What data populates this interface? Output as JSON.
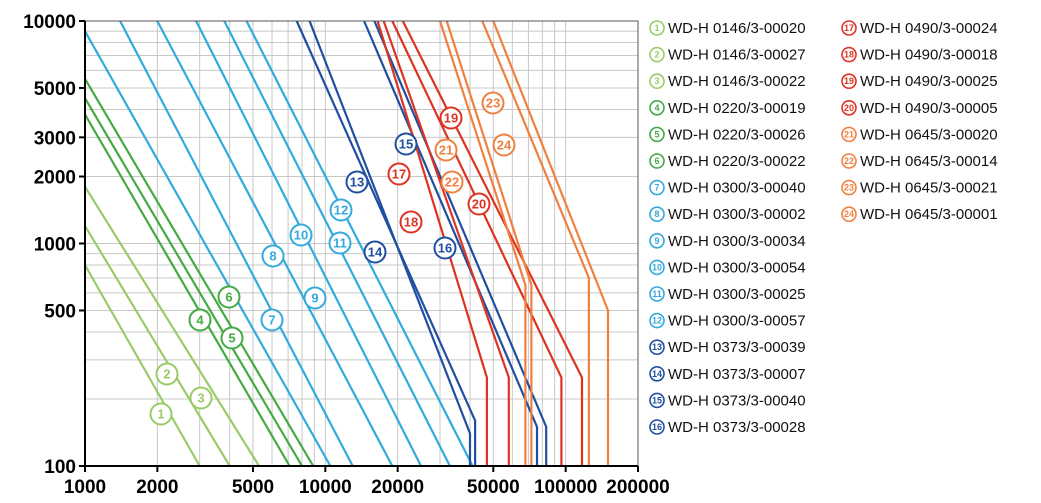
{
  "chart_data": {
    "type": "line",
    "title": "",
    "xlabel": "",
    "ylabel": "",
    "x_scale": "log",
    "y_scale": "log",
    "xlim": [
      1000,
      200000
    ],
    "ylim": [
      100,
      10000
    ],
    "grid": true,
    "legend_position": "right",
    "x_ticks": [
      1000,
      2000,
      5000,
      10000,
      20000,
      50000,
      100000,
      200000
    ],
    "x_tick_labels": [
      "1000",
      "2000",
      "5000",
      "10000",
      "20000",
      "50000",
      "100000",
      "200000"
    ],
    "y_ticks": [
      100,
      500,
      1000,
      2000,
      3000,
      5000,
      10000
    ],
    "y_tick_labels": [
      "100",
      "500",
      "1000",
      "2000",
      "3000",
      "5000",
      "10000"
    ],
    "series": [
      {
        "name": "WD-H 0146/3-00020",
        "marker": "1",
        "color": "#99cc66",
        "x": [
          1000,
          3000
        ],
        "y": [
          800,
          100
        ]
      },
      {
        "name": "WD-H 0146/3-00027",
        "marker": "2",
        "color": "#99cc66",
        "x": [
          1000,
          4000
        ],
        "y": [
          1200,
          100
        ]
      },
      {
        "name": "WD-H 0146/3-00022",
        "marker": "3",
        "color": "#99cc66",
        "x": [
          1000,
          5300
        ],
        "y": [
          1800,
          100
        ]
      },
      {
        "name": "WD-H 0220/3-00019",
        "marker": "4",
        "color": "#44aa44",
        "x": [
          1000,
          7100
        ],
        "y": [
          3800,
          100
        ]
      },
      {
        "name": "WD-H 0220/3-00026",
        "marker": "5",
        "color": "#44aa44",
        "x": [
          1000,
          8000
        ],
        "y": [
          4500,
          100
        ]
      },
      {
        "name": "WD-H 0220/3-00022",
        "marker": "6",
        "color": "#44aa44",
        "x": [
          1000,
          8900
        ],
        "y": [
          5500,
          100
        ]
      },
      {
        "name": "WD-H 0300/3-00040",
        "marker": "7",
        "color": "#33aadd",
        "x": [
          1000,
          10500
        ],
        "y": [
          9000,
          100
        ]
      },
      {
        "name": "WD-H 0300/3-00002",
        "marker": "8",
        "color": "#33aadd",
        "x": [
          1400,
          13000
        ],
        "y": [
          10000,
          100
        ]
      },
      {
        "name": "WD-H 0300/3-00034",
        "marker": "9",
        "color": "#33aadd",
        "x": [
          2000,
          19000
        ],
        "y": [
          10000,
          100
        ]
      },
      {
        "name": "WD-H 0300/3-00054",
        "marker": "10",
        "color": "#33aadd",
        "x": [
          2900,
          25000
        ],
        "y": [
          10000,
          100
        ]
      },
      {
        "name": "WD-H 0300/3-00025",
        "marker": "11",
        "color": "#33aadd",
        "x": [
          3800,
          33000
        ],
        "y": [
          10000,
          100
        ]
      },
      {
        "name": "WD-H 0300/3-00057",
        "marker": "12",
        "color": "#33aadd",
        "x": [
          4700,
          41000
        ],
        "y": [
          10000,
          100
        ]
      },
      {
        "name": "WD-H 0373/3-00039",
        "marker": "13",
        "color": "#1f4fa0",
        "x": [
          7600,
          42000,
          42000
        ],
        "y": [
          10000,
          160,
          100
        ]
      },
      {
        "name": "WD-H 0373/3-00007",
        "marker": "14",
        "color": "#1f4fa0",
        "x": [
          8600,
          40000,
          40000
        ],
        "y": [
          10000,
          140,
          100
        ]
      },
      {
        "name": "WD-H 0373/3-00040",
        "marker": "15",
        "color": "#1f4fa0",
        "x": [
          16000,
          83000,
          83000
        ],
        "y": [
          10000,
          150,
          100
        ]
      },
      {
        "name": "WD-H 0373/3-00028",
        "marker": "16",
        "color": "#1f4fa0",
        "x": [
          14500,
          76000,
          76000
        ],
        "y": [
          10000,
          150,
          100
        ]
      },
      {
        "name": "WD-H 0490/3-00024",
        "marker": "17",
        "color": "#dd3322",
        "x": [
          19000,
          96000,
          96000
        ],
        "y": [
          10000,
          250,
          100
        ]
      },
      {
        "name": "WD-H 0490/3-00018",
        "marker": "18",
        "color": "#dd3322",
        "x": [
          17500,
          58000,
          58000
        ],
        "y": [
          10000,
          250,
          100
        ]
      },
      {
        "name": "WD-H 0490/3-00025",
        "marker": "19",
        "color": "#dd3322",
        "x": [
          21000,
          117000,
          117000
        ],
        "y": [
          10000,
          250,
          100
        ]
      },
      {
        "name": "WD-H 0490/3-00005",
        "marker": "20",
        "color": "#dd3322",
        "x": [
          16500,
          47000,
          47000
        ],
        "y": [
          10000,
          250,
          100
        ]
      },
      {
        "name": "WD-H 0645/3-00020",
        "marker": "21",
        "color": "#f08040",
        "x": [
          30000,
          68000,
          68000
        ],
        "y": [
          10000,
          650,
          100
        ]
      },
      {
        "name": "WD-H 0645/3-00014",
        "marker": "22",
        "color": "#f08040",
        "x": [
          32000,
          72000,
          72000
        ],
        "y": [
          10000,
          650,
          100
        ]
      },
      {
        "name": "WD-H 0645/3-00021",
        "marker": "23",
        "color": "#f08040",
        "x": [
          45000,
          125000,
          125000
        ],
        "y": [
          10000,
          700,
          100
        ]
      },
      {
        "name": "WD-H 0645/3-00001",
        "marker": "24",
        "color": "#f08040",
        "x": [
          50000,
          150000,
          150000
        ],
        "y": [
          10000,
          500,
          100
        ]
      }
    ]
  }
}
